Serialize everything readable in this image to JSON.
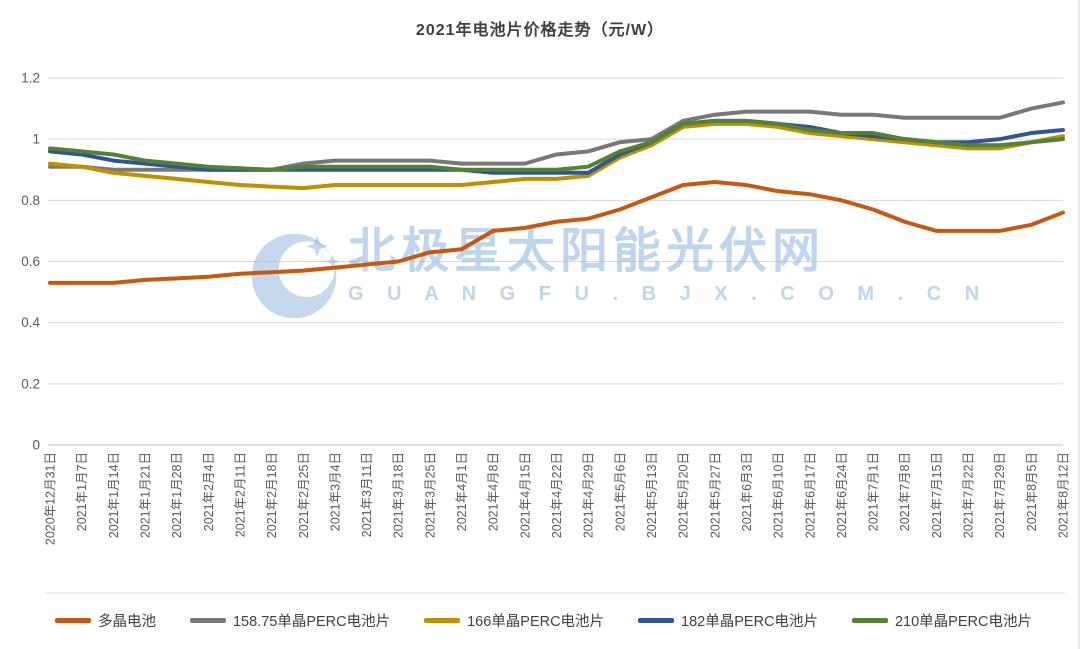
{
  "watermark": {
    "line1": "北极星太阳能光伏网",
    "line2": "G U A N G F U . B J X . C O M . C N"
  },
  "legend_note": "legend built from chart_data.series",
  "chart_data": {
    "type": "line",
    "title": "2021年电池片价格走势（元/W）",
    "xlabel": "",
    "ylabel": "",
    "ylim": [
      0,
      1.2
    ],
    "yticks": [
      0,
      0.2,
      0.4,
      0.6,
      0.8,
      1,
      1.2
    ],
    "ytick_labels": [
      "0",
      "0.2",
      "0.4",
      "0.6",
      "0.8",
      "1",
      "1.2"
    ],
    "grid": true,
    "legend_position": "bottom",
    "categories": [
      "2020年12月31日",
      "2021年1月7日",
      "2021年1月14日",
      "2021年1月21日",
      "2021年1月28日",
      "2021年2月4日",
      "2021年2月11日",
      "2021年2月18日",
      "2021年2月25日",
      "2021年3月4日",
      "2021年3月11日",
      "2021年3月18日",
      "2021年3月25日",
      "2021年4月1日",
      "2021年4月8日",
      "2021年4月15日",
      "2021年4月22日",
      "2021年4月29日",
      "2021年5月6日",
      "2021年5月13日",
      "2021年5月20日",
      "2021年5月27日",
      "2021年6月3日",
      "2021年6月10日",
      "2021年6月17日",
      "2021年6月24日",
      "2021年7月1日",
      "2021年7月8日",
      "2021年7月15日",
      "2021年7月22日",
      "2021年7月29日",
      "2021年8月5日",
      "2021年8月12日"
    ],
    "series": [
      {
        "name": "多晶电池",
        "color": "#C45911",
        "values": [
          0.53,
          0.53,
          0.53,
          0.54,
          0.545,
          0.55,
          0.56,
          0.565,
          0.57,
          0.58,
          0.59,
          0.6,
          0.63,
          0.64,
          0.7,
          0.71,
          0.73,
          0.74,
          0.77,
          0.81,
          0.85,
          0.86,
          0.85,
          0.83,
          0.82,
          0.8,
          0.77,
          0.73,
          0.7,
          0.7,
          0.7,
          0.72,
          0.76
        ]
      },
      {
        "name": "158.75单晶PERC电池片",
        "color": "#787878",
        "values": [
          0.91,
          0.91,
          0.9,
          0.9,
          0.9,
          0.9,
          0.9,
          0.9,
          0.92,
          0.93,
          0.93,
          0.93,
          0.93,
          0.92,
          0.92,
          0.92,
          0.95,
          0.96,
          0.99,
          1.0,
          1.06,
          1.08,
          1.09,
          1.09,
          1.09,
          1.08,
          1.08,
          1.07,
          1.07,
          1.07,
          1.07,
          1.1,
          1.12
        ]
      },
      {
        "name": "166单晶PERC电池片",
        "color": "#BF9000",
        "values": [
          0.92,
          0.91,
          0.89,
          0.88,
          0.87,
          0.86,
          0.85,
          0.845,
          0.84,
          0.85,
          0.85,
          0.85,
          0.85,
          0.85,
          0.86,
          0.87,
          0.87,
          0.88,
          0.94,
          0.98,
          1.04,
          1.05,
          1.05,
          1.04,
          1.02,
          1.01,
          1.0,
          0.99,
          0.98,
          0.97,
          0.97,
          0.99,
          1.01
        ]
      },
      {
        "name": "182单晶PERC电池片",
        "color": "#2F5597",
        "values": [
          0.96,
          0.95,
          0.93,
          0.92,
          0.91,
          0.9,
          0.9,
          0.9,
          0.9,
          0.9,
          0.9,
          0.9,
          0.9,
          0.9,
          0.89,
          0.89,
          0.89,
          0.89,
          0.95,
          0.99,
          1.05,
          1.06,
          1.06,
          1.05,
          1.04,
          1.02,
          1.01,
          1.0,
          0.99,
          0.99,
          1.0,
          1.02,
          1.03
        ]
      },
      {
        "name": "210单晶PERC电池片",
        "color": "#538135",
        "values": [
          0.97,
          0.96,
          0.95,
          0.93,
          0.92,
          0.91,
          0.905,
          0.9,
          0.91,
          0.91,
          0.91,
          0.91,
          0.91,
          0.9,
          0.9,
          0.9,
          0.9,
          0.91,
          0.96,
          0.99,
          1.05,
          1.06,
          1.06,
          1.05,
          1.03,
          1.02,
          1.02,
          1.0,
          0.99,
          0.98,
          0.98,
          0.99,
          1.0
        ]
      }
    ]
  }
}
